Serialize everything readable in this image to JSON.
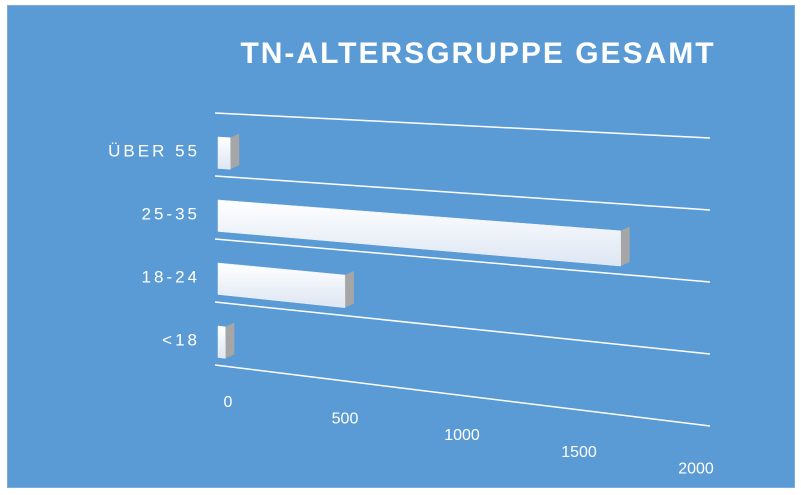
{
  "chart_data": {
    "type": "bar",
    "orientation": "horizontal",
    "title": "TN-ALTERSGRUPPE GESAMT",
    "categories": [
      "ÜBER 55",
      "25-35",
      "18-24",
      "<18"
    ],
    "values": [
      50,
      1650,
      520,
      30
    ],
    "color": "#eef3fb",
    "xlim": [
      0,
      2000
    ],
    "xticks": [
      0,
      500,
      1000,
      1500,
      2000
    ]
  }
}
